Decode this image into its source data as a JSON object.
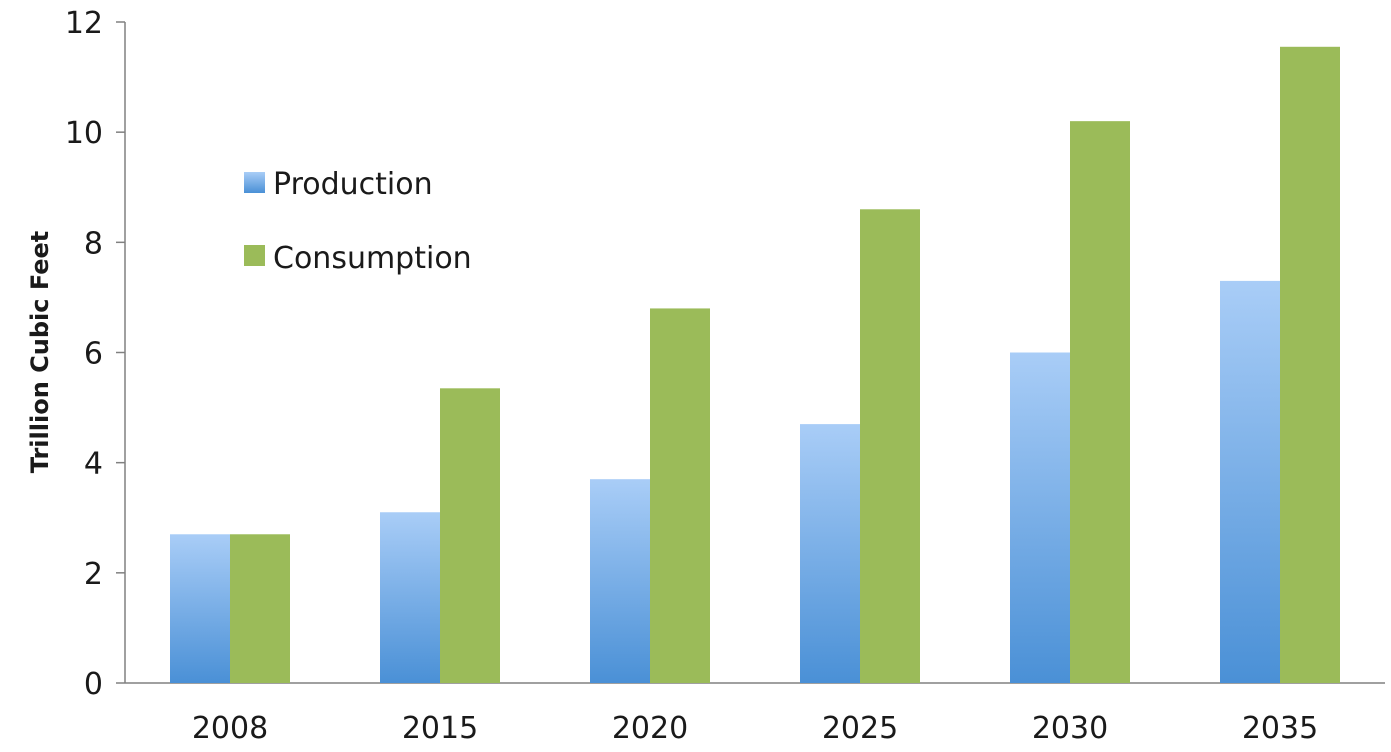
{
  "chart_data": {
    "type": "bar",
    "title": "",
    "xlabel": "",
    "ylabel": "Trillion Cubic Feet",
    "categories": [
      "2008",
      "2015",
      "2020",
      "2025",
      "2030",
      "2035"
    ],
    "series": [
      {
        "name": "Production",
        "values": [
          2.7,
          3.1,
          3.7,
          4.7,
          6.0,
          7.3
        ],
        "color_top": "#a9cdf7",
        "color_bottom": "#4a90d6"
      },
      {
        "name": "Consumption",
        "values": [
          2.7,
          5.35,
          6.8,
          8.6,
          10.2,
          11.55
        ],
        "color": "#9bbb59"
      }
    ],
    "ylim": [
      0,
      12
    ],
    "yticks": [
      "0",
      "2",
      "4",
      "6",
      "8",
      "10",
      "12"
    ],
    "grid": false,
    "legend_position": "top-left"
  }
}
